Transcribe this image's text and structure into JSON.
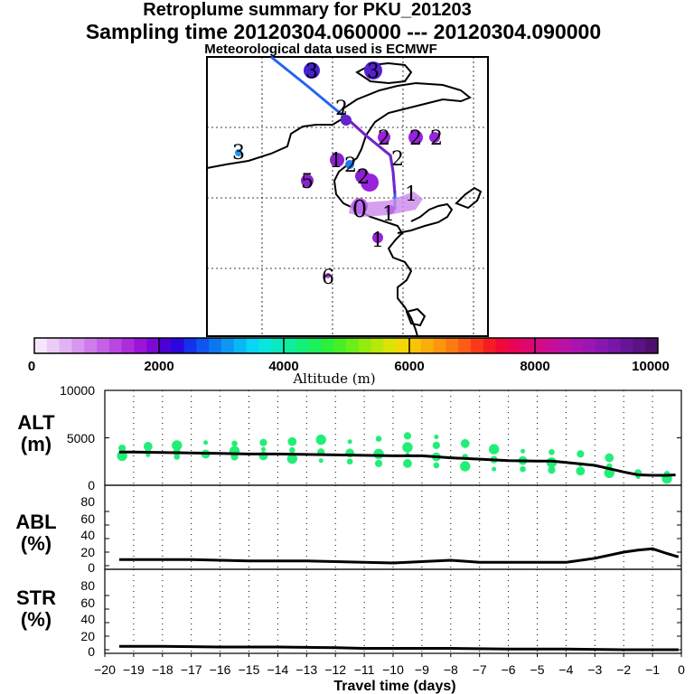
{
  "header": {
    "title_line1": "Retroplume summary for PKU_201203",
    "title_line2": "Sampling time   20120304.060000 --- 20120304.090000",
    "title_line3": "Meteorological data used is ECMWF"
  },
  "map": {
    "cluster_labels": [
      "3",
      "3",
      "3",
      "2",
      "2",
      "2",
      "2",
      "2",
      "1",
      "2",
      "5",
      "2",
      "0",
      "1",
      "1",
      "1",
      "6"
    ],
    "colorbar": {
      "label": "Altitude (m)",
      "ticks": [
        "0",
        "2000",
        "4000",
        "6000",
        "8000",
        "10000"
      ]
    }
  },
  "colors": {
    "plume_green": "#22ee77",
    "line": "#000000",
    "traj_blue": "#2266ee",
    "traj_purple": "#9922dd"
  },
  "chart_data": [
    {
      "type": "line",
      "panel": "ALT",
      "ylabel_line1": "ALT",
      "ylabel_line2": "(m)",
      "ylim": [
        0,
        10000
      ],
      "yticks": [
        "10000",
        "5000",
        "0"
      ],
      "xlim": [
        -20,
        0
      ],
      "x": [
        -19.5,
        -19,
        -18,
        -17,
        -16,
        -15,
        -14,
        -13,
        -12,
        -11,
        -10,
        -9,
        -8,
        -7,
        -6,
        -5,
        -4.5,
        -4,
        -3,
        -2,
        -1.5,
        -1,
        -0.5,
        -0.2
      ],
      "values": [
        3500,
        3500,
        3450,
        3400,
        3350,
        3300,
        3300,
        3250,
        3200,
        3150,
        3100,
        3100,
        2900,
        2750,
        2600,
        2550,
        2550,
        2400,
        2100,
        1400,
        1100,
        1050,
        1050,
        1100
      ],
      "scatter_points": [
        [
          -19.4,
          3400
        ],
        [
          -19.4,
          3900
        ],
        [
          -19.4,
          3100
        ],
        [
          -18.5,
          3600
        ],
        [
          -18.5,
          4100
        ],
        [
          -18.5,
          3200
        ],
        [
          -17.5,
          3500
        ],
        [
          -17.5,
          4200
        ],
        [
          -17.5,
          3000
        ],
        [
          -16.5,
          3300
        ],
        [
          -16.5,
          4500
        ],
        [
          -15.5,
          3000
        ],
        [
          -15.5,
          3600
        ],
        [
          -15.5,
          4400
        ],
        [
          -14.5,
          3100
        ],
        [
          -14.5,
          3800
        ],
        [
          -14.5,
          4500
        ],
        [
          -13.5,
          2800
        ],
        [
          -13.5,
          3700
        ],
        [
          -13.5,
          4600
        ],
        [
          -12.5,
          2600
        ],
        [
          -12.5,
          3500
        ],
        [
          -12.5,
          4800
        ],
        [
          -11.5,
          2500
        ],
        [
          -11.5,
          3400
        ],
        [
          -11.5,
          4600
        ],
        [
          -10.5,
          2300
        ],
        [
          -10.5,
          3300
        ],
        [
          -10.5,
          4900
        ],
        [
          -9.5,
          2300
        ],
        [
          -9.5,
          3200
        ],
        [
          -9.5,
          5200
        ],
        [
          -9.5,
          4000
        ],
        [
          -8.5,
          2100
        ],
        [
          -8.5,
          3000
        ],
        [
          -8.5,
          5100
        ],
        [
          -8.5,
          4200
        ],
        [
          -7.5,
          2000
        ],
        [
          -7.5,
          3000
        ],
        [
          -7.5,
          4400
        ],
        [
          -6.5,
          1700
        ],
        [
          -6.5,
          2700
        ],
        [
          -6.5,
          3800
        ],
        [
          -5.5,
          1700
        ],
        [
          -5.5,
          2600
        ],
        [
          -5.5,
          3600
        ],
        [
          -4.5,
          1600
        ],
        [
          -4.5,
          2400
        ],
        [
          -4.5,
          3500
        ],
        [
          -3.5,
          1500
        ],
        [
          -3.5,
          2200
        ],
        [
          -3.5,
          3300
        ],
        [
          -2.5,
          1300
        ],
        [
          -2.5,
          2000
        ],
        [
          -2.5,
          2900
        ],
        [
          -1.5,
          900
        ],
        [
          -1.5,
          1300
        ],
        [
          -0.5,
          700
        ],
        [
          -0.5,
          1200
        ]
      ]
    },
    {
      "type": "line",
      "panel": "ABL",
      "ylabel_line1": "ABL",
      "ylabel_line2": "(%)",
      "ylim": [
        0,
        100
      ],
      "yticks": [
        "80",
        "60",
        "40",
        "20",
        "0"
      ],
      "xlim": [
        -20,
        0
      ],
      "x": [
        -19.5,
        -18,
        -17,
        -16,
        -15,
        -14,
        -13,
        -12,
        -11,
        -10,
        -9,
        -8,
        -7,
        -6,
        -5,
        -4,
        -3,
        -2,
        -1.5,
        -1,
        -0.5,
        -0.1
      ],
      "values": [
        9,
        9,
        9,
        8,
        7,
        7,
        7,
        6,
        5,
        4,
        6,
        8,
        5,
        5,
        5,
        5,
        11,
        20,
        23,
        25,
        18,
        13
      ]
    },
    {
      "type": "line",
      "panel": "STR",
      "ylabel_line1": "STR",
      "ylabel_line2": "(%)",
      "ylim": [
        0,
        100
      ],
      "yticks": [
        "80",
        "60",
        "40",
        "20",
        "0"
      ],
      "xlim": [
        -20,
        0
      ],
      "x": [
        -19.5,
        -18,
        -16,
        -14,
        -12,
        -11,
        -10,
        -8,
        -6,
        -4,
        -3,
        -2,
        -1,
        -0.1
      ],
      "values": [
        5,
        5,
        4,
        4,
        3,
        2,
        2,
        2,
        1,
        1,
        0.5,
        0,
        0,
        0
      ]
    }
  ],
  "xaxis": {
    "ticks": [
      "−20",
      "−19",
      "−18",
      "−17",
      "−16",
      "−15",
      "−14",
      "−13",
      "−12",
      "−11",
      "−10",
      "−9",
      "−8",
      "−7",
      "−6",
      "−5",
      "−4",
      "−3",
      "−2",
      "−1",
      "0"
    ],
    "label": "Travel time (days)"
  }
}
